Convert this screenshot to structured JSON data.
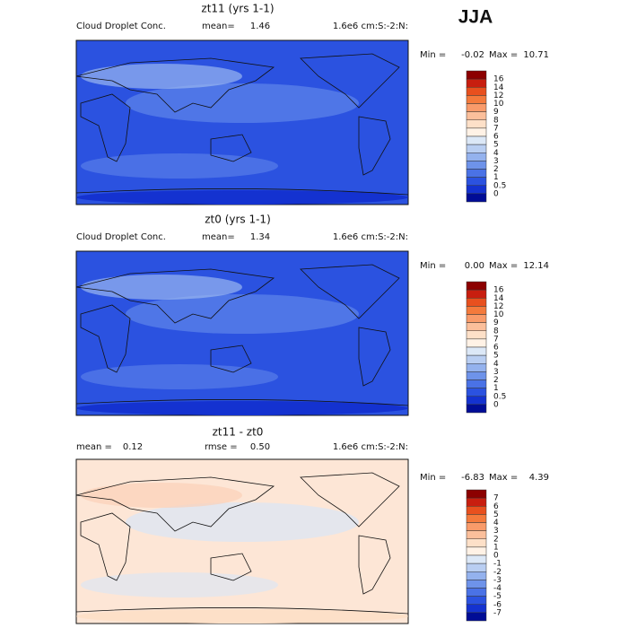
{
  "season": "JJA",
  "panels": [
    {
      "title": "zt11 (yrs 1-1)",
      "field": "Cloud Droplet Conc.",
      "stats": [
        {
          "label": "mean=",
          "value": "1.46"
        }
      ],
      "units": "1.6e6 cm:S:-2:N:",
      "min_label": "Min =",
      "min": "-0.02",
      "max_label": "Max =",
      "max": "10.71",
      "levels": [
        "16",
        "14",
        "12",
        "10",
        "9",
        "8",
        "7",
        "6",
        "5",
        "4",
        "3",
        "2",
        "1",
        "0.5",
        "0"
      ],
      "colors": [
        "#8c0000",
        "#c81e0f",
        "#e8501e",
        "#f47a3c",
        "#f99b6a",
        "#fbbf9b",
        "#fde0c8",
        "#fff2e6",
        "#dce8f7",
        "#b9cef2",
        "#94b2ee",
        "#6e93ea",
        "#4a72e6",
        "#2b52e0",
        "#1432d0",
        "#000c96"
      ],
      "map_color": "#2b52e0"
    },
    {
      "title": "zt0 (yrs 1-1)",
      "field": "Cloud Droplet Conc.",
      "stats": [
        {
          "label": "mean=",
          "value": "1.34"
        }
      ],
      "units": "1.6e6 cm:S:-2:N:",
      "min_label": "Min =",
      "min": "0.00",
      "max_label": "Max =",
      "max": "12.14",
      "levels": [
        "16",
        "14",
        "12",
        "10",
        "9",
        "8",
        "7",
        "6",
        "5",
        "4",
        "3",
        "2",
        "1",
        "0.5",
        "0"
      ],
      "colors": [
        "#8c0000",
        "#c81e0f",
        "#e8501e",
        "#f47a3c",
        "#f99b6a",
        "#fbbf9b",
        "#fde0c8",
        "#fff2e6",
        "#dce8f7",
        "#b9cef2",
        "#94b2ee",
        "#6e93ea",
        "#4a72e6",
        "#2b52e0",
        "#1432d0",
        "#000c96"
      ],
      "map_color": "#2b52e0"
    },
    {
      "title": "zt11 - zt0",
      "stats": [
        {
          "label": "mean =",
          "value": "0.12"
        },
        {
          "label": "rmse =",
          "value": "0.50"
        }
      ],
      "units": "1.6e6 cm:S:-2:N:",
      "min_label": "Min =",
      "min": "-6.83",
      "max_label": "Max =",
      "max": "4.39",
      "levels": [
        "7",
        "6",
        "5",
        "4",
        "3",
        "2",
        "1",
        "0",
        "-1",
        "-2",
        "-3",
        "-4",
        "-5",
        "-6",
        "-7"
      ],
      "colors": [
        "#8c0000",
        "#c81e0f",
        "#e8501e",
        "#f47a3c",
        "#f99b6a",
        "#fbbf9b",
        "#fde0c8",
        "#fff2e6",
        "#dce8f7",
        "#b9cef2",
        "#94b2ee",
        "#6e93ea",
        "#4a72e6",
        "#2b52e0",
        "#1432d0",
        "#000c96"
      ],
      "map_color": "#fde6d6"
    }
  ]
}
